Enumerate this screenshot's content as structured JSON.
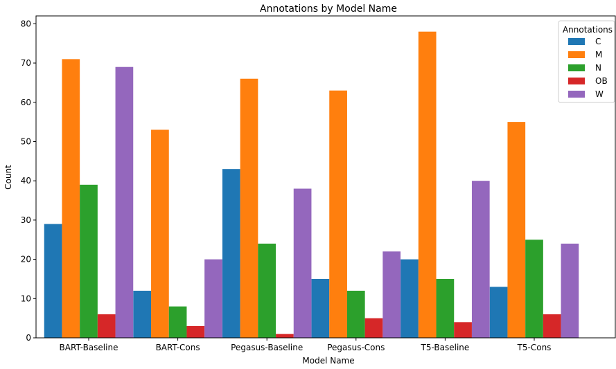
{
  "chart_data": {
    "type": "bar",
    "title": "Annotations by Model Name",
    "xlabel": "Model Name",
    "ylabel": "Count",
    "ylim": [
      0,
      82
    ],
    "yticks": [
      0,
      10,
      20,
      30,
      40,
      50,
      60,
      70,
      80
    ],
    "grid": false,
    "legend": {
      "title": "Annotations",
      "placement": "top-right"
    },
    "categories": [
      "BART-Baseline",
      "BART-Cons",
      "Pegasus-Baseline",
      "Pegasus-Cons",
      "T5-Baseline",
      "T5-Cons"
    ],
    "series": [
      {
        "name": "C",
        "color": "#1f77b4",
        "values": [
          29,
          12,
          43,
          15,
          20,
          13
        ]
      },
      {
        "name": "M",
        "color": "#ff7f0e",
        "values": [
          71,
          53,
          66,
          63,
          78,
          55
        ]
      },
      {
        "name": "N",
        "color": "#2ca02c",
        "values": [
          39,
          8,
          24,
          12,
          15,
          25
        ]
      },
      {
        "name": "OB",
        "color": "#d62728",
        "values": [
          6,
          3,
          1,
          5,
          4,
          6
        ]
      },
      {
        "name": "W",
        "color": "#9467bd",
        "values": [
          69,
          20,
          38,
          22,
          40,
          24
        ]
      }
    ]
  }
}
